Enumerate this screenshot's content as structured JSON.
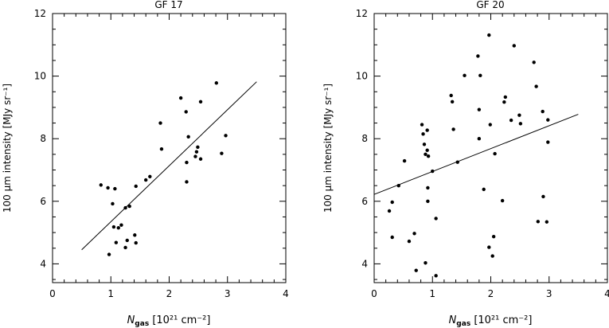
{
  "chart_data": [
    {
      "type": "scatter",
      "title": "GF 17",
      "ylabel": "100 μm intensity [MJy sr⁻¹]",
      "xlabel_main": "N",
      "xlabel_sub": "gas",
      "xlabel_units": "[10²¹ cm⁻²]",
      "xlim": [
        0,
        4
      ],
      "ylim": [
        3.4,
        12
      ],
      "xticks": [
        0,
        1,
        2,
        3,
        4
      ],
      "yticks": [
        4,
        6,
        8,
        10,
        12
      ],
      "points": [
        [
          0.83,
          6.52
        ],
        [
          0.95,
          6.43
        ],
        [
          1.03,
          5.92
        ],
        [
          1.07,
          6.4
        ],
        [
          1.05,
          5.18
        ],
        [
          1.13,
          5.15
        ],
        [
          1.18,
          5.24
        ],
        [
          1.25,
          5.79
        ],
        [
          1.32,
          5.84
        ],
        [
          1.43,
          6.48
        ],
        [
          1.6,
          6.68
        ],
        [
          1.67,
          6.79
        ],
        [
          0.97,
          4.3
        ],
        [
          1.09,
          4.68
        ],
        [
          1.25,
          4.52
        ],
        [
          1.28,
          4.75
        ],
        [
          1.41,
          4.92
        ],
        [
          1.43,
          4.67
        ],
        [
          1.85,
          8.5
        ],
        [
          1.87,
          7.67
        ],
        [
          2.2,
          9.3
        ],
        [
          2.29,
          8.86
        ],
        [
          2.33,
          8.06
        ],
        [
          2.3,
          7.24
        ],
        [
          2.3,
          6.62
        ],
        [
          2.45,
          7.43
        ],
        [
          2.47,
          7.58
        ],
        [
          2.49,
          7.73
        ],
        [
          2.54,
          9.18
        ],
        [
          2.54,
          7.35
        ],
        [
          2.81,
          9.78
        ],
        [
          2.9,
          7.53
        ],
        [
          2.97,
          8.1
        ]
      ],
      "fit_line": [
        [
          0.5,
          4.45
        ],
        [
          3.5,
          9.82
        ]
      ]
    },
    {
      "type": "scatter",
      "title": "GF 20",
      "ylabel": "100 μm intensity [MJy sr⁻¹]",
      "xlabel_main": "N",
      "xlabel_sub": "gas",
      "xlabel_units": "[10²¹ cm⁻²]",
      "xlim": [
        0,
        4
      ],
      "ylim": [
        3.4,
        12
      ],
      "xticks": [
        0,
        1,
        2,
        3,
        4
      ],
      "yticks": [
        4,
        6,
        8,
        10,
        12
      ],
      "points": [
        [
          0.26,
          5.69
        ],
        [
          0.31,
          5.97
        ],
        [
          0.31,
          4.85
        ],
        [
          0.42,
          6.5
        ],
        [
          0.52,
          7.29
        ],
        [
          0.6,
          4.72
        ],
        [
          0.69,
          4.97
        ],
        [
          0.72,
          3.79
        ],
        [
          0.82,
          8.45
        ],
        [
          0.84,
          8.15
        ],
        [
          0.86,
          7.82
        ],
        [
          0.88,
          7.5
        ],
        [
          0.88,
          4.03
        ],
        [
          0.91,
          8.27
        ],
        [
          0.91,
          7.63
        ],
        [
          0.93,
          7.44
        ],
        [
          0.92,
          6.43
        ],
        [
          0.92,
          6.0
        ],
        [
          1.0,
          6.96
        ],
        [
          1.06,
          5.45
        ],
        [
          1.06,
          3.62
        ],
        [
          1.32,
          9.38
        ],
        [
          1.34,
          9.18
        ],
        [
          1.36,
          8.3
        ],
        [
          1.43,
          7.25
        ],
        [
          1.55,
          10.02
        ],
        [
          1.78,
          10.64
        ],
        [
          1.8,
          8.93
        ],
        [
          1.8,
          8.0
        ],
        [
          1.82,
          10.02
        ],
        [
          1.88,
          6.38
        ],
        [
          1.97,
          11.31
        ],
        [
          1.99,
          8.45
        ],
        [
          1.97,
          4.53
        ],
        [
          2.03,
          4.25
        ],
        [
          2.05,
          4.87
        ],
        [
          2.07,
          7.52
        ],
        [
          2.2,
          6.02
        ],
        [
          2.25,
          9.33
        ],
        [
          2.23,
          9.17
        ],
        [
          2.35,
          8.59
        ],
        [
          2.4,
          10.97
        ],
        [
          2.49,
          8.75
        ],
        [
          2.51,
          8.48
        ],
        [
          2.74,
          10.44
        ],
        [
          2.78,
          9.67
        ],
        [
          2.81,
          5.35
        ],
        [
          2.89,
          8.87
        ],
        [
          2.9,
          6.15
        ],
        [
          2.96,
          5.34
        ],
        [
          2.98,
          8.6
        ],
        [
          2.98,
          7.89
        ]
      ],
      "fit_line": [
        [
          0.0,
          6.22
        ],
        [
          3.5,
          8.78
        ]
      ]
    }
  ]
}
